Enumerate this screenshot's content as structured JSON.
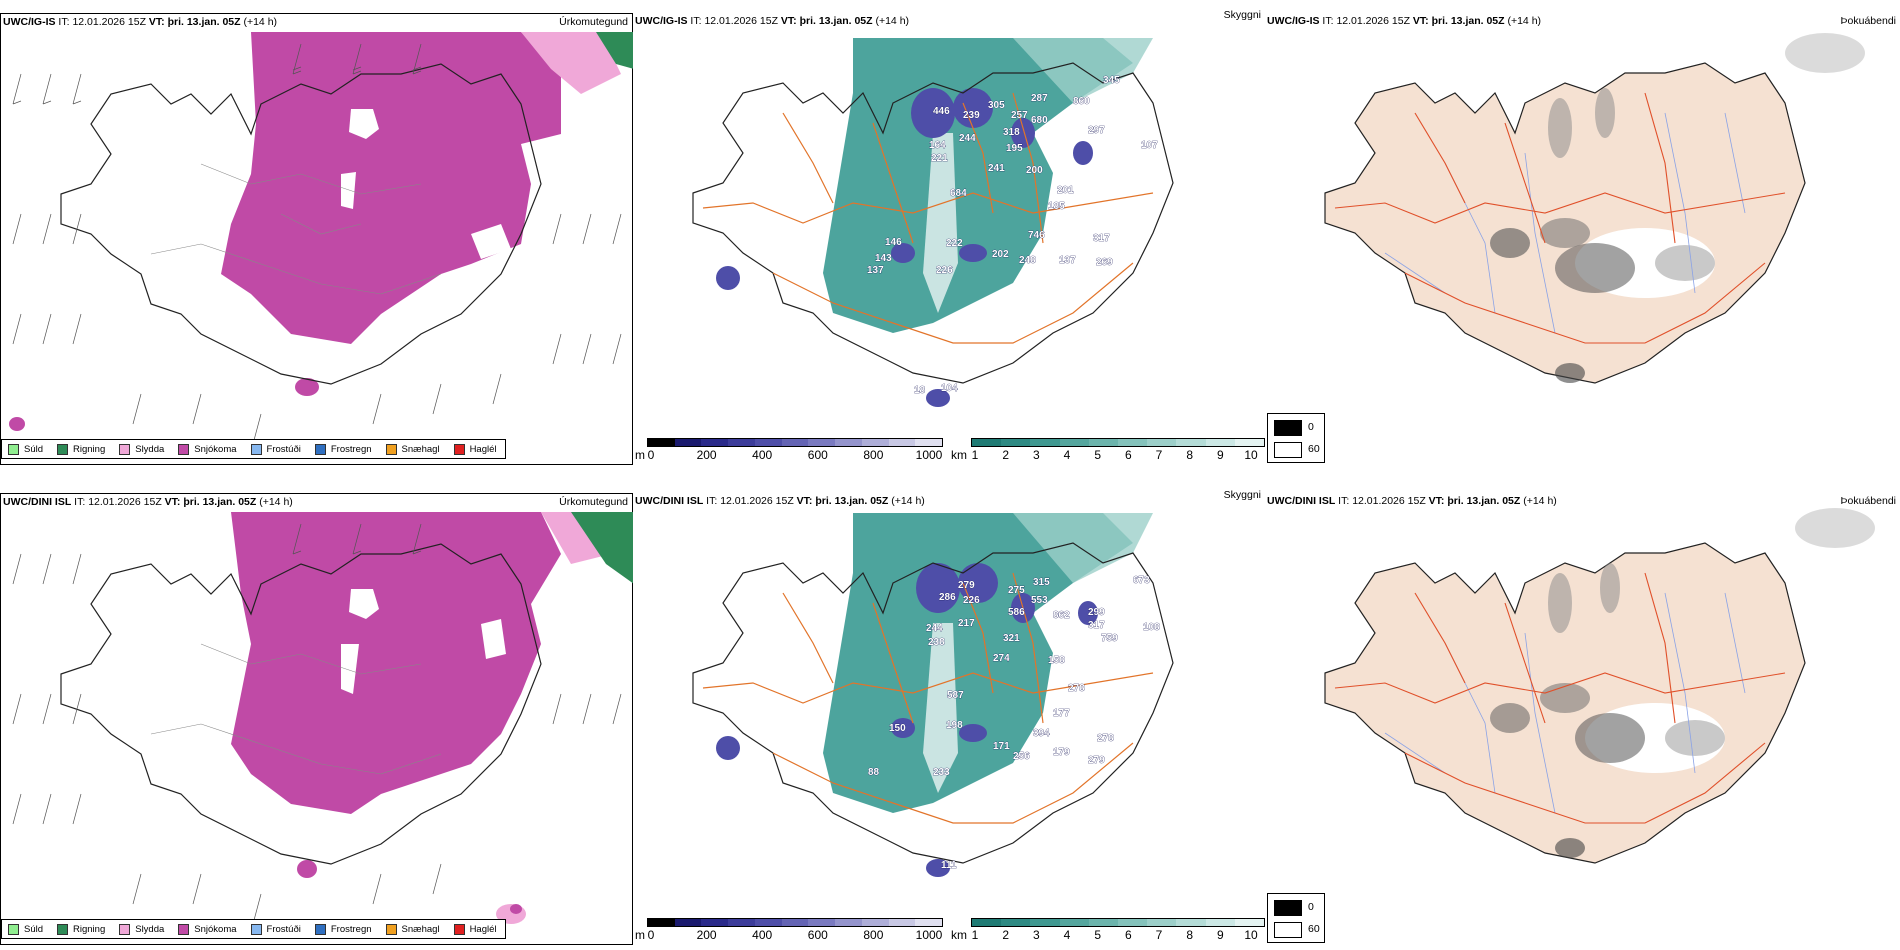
{
  "rows": [
    {
      "model": "UWC/IG-IS",
      "it_label": "IT:",
      "it_value": "12.01.2026 15Z",
      "vt_label": "VT:",
      "vt_value": "þri. 13.jan. 05Z",
      "lead": "(+14 h)",
      "visibility_labels": [
        "446",
        "239",
        "305",
        "257",
        "287",
        "680",
        "860",
        "345",
        "297",
        "107",
        "164",
        "244",
        "318",
        "221",
        "195",
        "241",
        "200",
        "201",
        "185",
        "684",
        "146",
        "222",
        "746",
        "317",
        "143",
        "137",
        "226",
        "202",
        "248",
        "137",
        "269",
        "104",
        "18"
      ]
    },
    {
      "model": "UWC/DINI ISL",
      "it_label": "IT:",
      "it_value": "12.01.2026 15Z",
      "vt_label": "VT:",
      "vt_value": "þri. 13.jan. 05Z",
      "lead": "(+14 h)",
      "visibility_labels": [
        "279",
        "286",
        "226",
        "275",
        "315",
        "553",
        "586",
        "862",
        "673",
        "299",
        "317",
        "759",
        "108",
        "244",
        "217",
        "238",
        "321",
        "274",
        "158",
        "278",
        "587",
        "177",
        "150",
        "198",
        "394",
        "278",
        "171",
        "256",
        "179",
        "279",
        "233",
        "88",
        "111"
      ]
    }
  ],
  "panel_titles": {
    "precip": "Úrkomutegund",
    "vis": "Skyggni",
    "fog": "Þokuábendi"
  },
  "precip_legend": [
    {
      "label": "Súld",
      "color": "#90ee90"
    },
    {
      "label": "Rigning",
      "color": "#2e8b57"
    },
    {
      "label": "Slydda",
      "color": "#f0a8d8"
    },
    {
      "label": "Snjókoma",
      "color": "#c04aa6"
    },
    {
      "label": "Frostúði",
      "color": "#87b8f0"
    },
    {
      "label": "Frostregn",
      "color": "#2f6fc0"
    },
    {
      "label": "Snæhagl",
      "color": "#f0a020"
    },
    {
      "label": "Haglél",
      "color": "#e02020"
    }
  ],
  "cloudbase_bar": {
    "unit": "m",
    "ticks": [
      "0",
      "200",
      "400",
      "600",
      "800",
      "1000"
    ],
    "colors": [
      "#000000",
      "#1a1a6e",
      "#2a2a8a",
      "#3c3c9a",
      "#4e4ea8",
      "#6464b4",
      "#7a7ac0",
      "#9494cc",
      "#aeaed8",
      "#c8c8e4",
      "#e0e0f0"
    ]
  },
  "vis_bar": {
    "unit": "km",
    "ticks": [
      "1",
      "2",
      "3",
      "4",
      "5",
      "6",
      "7",
      "8",
      "9",
      "10"
    ],
    "colors": [
      "#1f7b74",
      "#2e8a83",
      "#3f9890",
      "#55a69e",
      "#6cb4ac",
      "#84c2bb",
      "#9ccfc9",
      "#b4dcd7",
      "#cce8e5",
      "#e4f3f1"
    ]
  },
  "fog_legend": [
    {
      "value": "0",
      "color": "#000000"
    },
    {
      "value": "60",
      "color": "#ffffff"
    }
  ],
  "colors": {
    "snow": "#c04aa6",
    "sleet": "#f0a8d8",
    "rain": "#2e8b57",
    "teal": "#3a9a92",
    "land": "#f5e1d2",
    "roads": "#e2742a",
    "fogroads": "#e0502a",
    "rivers": "#8aa2e6"
  }
}
